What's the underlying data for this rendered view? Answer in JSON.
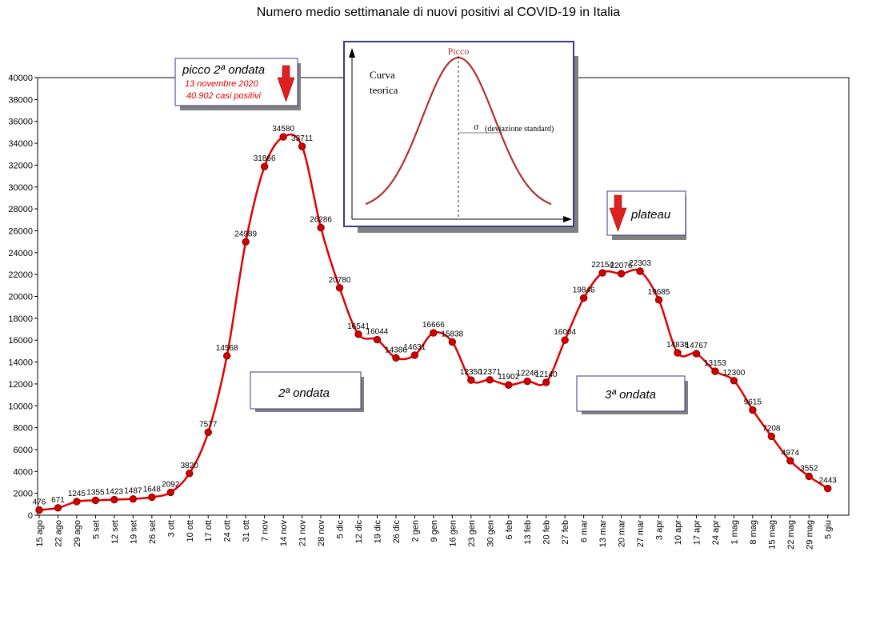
{
  "chart_data": {
    "type": "line",
    "title": "Numero medio settimanale di nuovi positivi al COVID-19 in Italia",
    "xlabel": "",
    "ylabel": "",
    "ylim": [
      0,
      40000
    ],
    "yticks": [
      "0",
      "2000",
      "4000",
      "6000",
      "8000",
      "10000",
      "12000",
      "14000",
      "16000",
      "18000",
      "20000",
      "22000",
      "24000",
      "26000",
      "28000",
      "30000",
      "32000",
      "34000",
      "36000",
      "38000",
      "40000"
    ],
    "grid": false,
    "categories": [
      "15 ago",
      "22 ago",
      "29 ago",
      "5 set",
      "12 set",
      "19 set",
      "26 set",
      "3 ott",
      "10 ott",
      "17 ott",
      "24 ott",
      "31 ott",
      "7 nov",
      "14 nov",
      "21 nov",
      "28 nov",
      "5 dic",
      "12 dic",
      "19 dic",
      "26 dic",
      "2 gen",
      "9 gen",
      "16 gen",
      "23 gen",
      "30 gen",
      "6 feb",
      "13 feb",
      "20 feb",
      "27 feb",
      "6 mar",
      "13 mar",
      "20 mar",
      "27 mar",
      "3 apr",
      "10 apr",
      "17 apr",
      "24 apr",
      "1 mag",
      "8 mag",
      "15 mag",
      "22 mag",
      "29 mag",
      "5 giu"
    ],
    "series": [
      {
        "values": [
          476,
          671,
          1245,
          1355,
          1423,
          1487,
          1648,
          2092,
          3820,
          7577,
          14568,
          24989,
          31866,
          34580,
          33711,
          26286,
          20780,
          16541,
          16044,
          14386,
          14631,
          16666,
          15838,
          12350,
          12371,
          11902,
          12246,
          12140,
          16004,
          19846,
          22154,
          22076,
          22303,
          19685,
          14838,
          14767,
          13153,
          12300,
          9615,
          7208,
          4974,
          3552,
          2443
        ]
      }
    ],
    "annotations": {
      "peak_box": {
        "line1": "picco 2ª ondata",
        "line2": "13 novembre 2020",
        "line3": "40.902 casi positivi"
      },
      "plateau_box": {
        "text": "plateau"
      },
      "wave2_box": {
        "text": "2ª ondata"
      },
      "wave3_box": {
        "text": "3ª ondata"
      },
      "inset": {
        "peak_label": "Picco",
        "curve_label_1": "Curva",
        "curve_label_2": "teorica",
        "sigma_label": "σ",
        "sigma_text": "(deviazione standard)"
      }
    },
    "colors": {
      "line": "#e00000",
      "marker": "#d40000",
      "marker_edge": "#800000",
      "arrow": "#e02020",
      "inset_border": "#3a3a8c",
      "inset_curve": "#b03030"
    }
  }
}
